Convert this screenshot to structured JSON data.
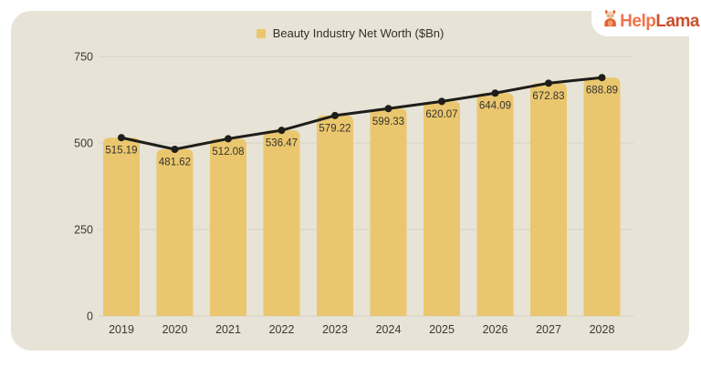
{
  "page": {
    "background": "#ffffff"
  },
  "card": {
    "background": "#e7e3d6"
  },
  "logo": {
    "icon": "llama-mascot-icon",
    "brand_first": "Help",
    "brand_second": "Lama",
    "color_first": "#ef7349",
    "color_second": "#cb4f2c",
    "mascot_body_color": "#e2602c",
    "mascot_face_color": "#f6cfae"
  },
  "legend": {
    "label": "Beauty Industry Net Worth ($Bn)",
    "swatch_color": "#eac76f"
  },
  "chart_data": {
    "type": "bar",
    "subtype": "bar-with-line-overlay",
    "title": "Beauty Industry Net Worth ($Bn)",
    "categories": [
      "2019",
      "2020",
      "2021",
      "2022",
      "2023",
      "2024",
      "2025",
      "2026",
      "2027",
      "2028"
    ],
    "series": [
      {
        "name": "Beauty Industry Net Worth ($Bn)",
        "values": [
          515.19,
          481.62,
          512.08,
          536.47,
          579.22,
          599.33,
          620.07,
          644.09,
          672.83,
          688.89
        ]
      }
    ],
    "value_labels": [
      "515.19",
      "481.62",
      "512.08",
      "536.47",
      "579.22",
      "599.33",
      "620.07",
      "644.09",
      "672.83",
      "688.89"
    ],
    "xlabel": "",
    "ylabel": "",
    "ylim": [
      0,
      750
    ],
    "yticks": [
      0,
      250,
      500,
      750
    ],
    "grid": "horizontal",
    "legend_position": "top-center",
    "bar_color": "#eac76f",
    "line_color": "#1e1d1a",
    "marker": "filled-circle",
    "value_label_color": "#35322b",
    "axis_label_color": "#3b382f",
    "grid_color": "#d6d2c4"
  }
}
